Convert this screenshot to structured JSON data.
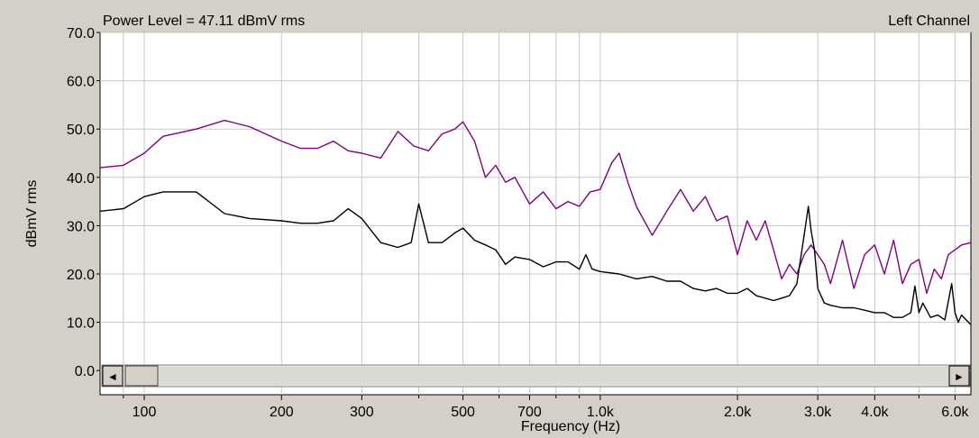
{
  "header": {
    "power_level": "Power Level = 47.11 dBmV rms",
    "channel": "Left Channel"
  },
  "scrollbar": {
    "left_arrow": "◄",
    "right_arrow": "►"
  },
  "colors": {
    "background": "#d4d0c8",
    "plot_bg": "#ffffff",
    "grid": "#c8c8c8",
    "series_upper": "#800080",
    "series_lower": "#000000"
  },
  "chart_data": {
    "type": "line",
    "xscale": "log",
    "xlabel": "Frequency (Hz)",
    "ylabel": "dBmV rms",
    "xlim": [
      80,
      6500
    ],
    "ylim": [
      -5,
      70
    ],
    "grid": true,
    "y_ticks": [
      0,
      10,
      20,
      30,
      40,
      50,
      60,
      70
    ],
    "y_tick_labels": [
      "0.0",
      "10.0",
      "20.0",
      "30.0",
      "40.0",
      "50.0",
      "60.0",
      "70.0"
    ],
    "x_ticks": [
      100,
      200,
      300,
      500,
      700,
      1000,
      2000,
      3000,
      4000,
      6000
    ],
    "x_tick_labels": [
      "100",
      "200",
      "300",
      "500",
      "700",
      "1.0k",
      "2.0k",
      "3.0k",
      "4.0k",
      "6.0k"
    ],
    "x_minor_grid": [
      90,
      400,
      600,
      800,
      900,
      5000
    ],
    "series": [
      {
        "color": "#800080",
        "x": [
          80,
          90,
          100,
          110,
          130,
          150,
          170,
          200,
          220,
          240,
          260,
          280,
          300,
          330,
          360,
          390,
          420,
          450,
          480,
          500,
          530,
          560,
          590,
          620,
          650,
          700,
          750,
          800,
          850,
          900,
          950,
          1000,
          1060,
          1100,
          1150,
          1200,
          1300,
          1400,
          1500,
          1600,
          1700,
          1800,
          1900,
          2000,
          2100,
          2200,
          2300,
          2400,
          2500,
          2600,
          2700,
          2800,
          2900,
          3000,
          3100,
          3200,
          3400,
          3600,
          3800,
          4000,
          4200,
          4400,
          4600,
          4800,
          5000,
          5200,
          5400,
          5600,
          5800,
          6000,
          6200,
          6500
        ],
        "y": [
          42,
          42.5,
          45,
          48.5,
          50,
          51.8,
          50.5,
          47.5,
          46,
          46,
          47.5,
          45.5,
          45,
          44,
          49.5,
          46.5,
          45.5,
          49,
          50,
          51.5,
          47.5,
          40,
          42.5,
          39,
          40,
          34.5,
          37,
          33.5,
          35,
          34,
          37,
          37.5,
          43,
          45,
          39,
          34,
          28,
          33,
          37.5,
          33,
          36,
          31,
          32,
          24,
          31,
          27,
          31,
          25,
          19,
          22,
          20,
          24,
          26,
          24,
          22,
          18,
          27,
          17,
          24,
          26,
          20,
          27,
          18,
          22,
          23,
          16,
          21,
          19,
          24,
          25,
          26,
          26.5
        ]
      },
      {
        "color": "#000000",
        "x": [
          80,
          90,
          100,
          110,
          130,
          150,
          170,
          200,
          220,
          240,
          260,
          280,
          300,
          330,
          360,
          385,
          400,
          420,
          450,
          480,
          500,
          530,
          560,
          590,
          620,
          650,
          700,
          750,
          800,
          850,
          900,
          930,
          960,
          1000,
          1100,
          1200,
          1300,
          1400,
          1500,
          1600,
          1700,
          1800,
          1900,
          2000,
          2100,
          2200,
          2300,
          2400,
          2500,
          2600,
          2700,
          2800,
          2860,
          2900,
          2950,
          3000,
          3100,
          3200,
          3400,
          3600,
          3800,
          4000,
          4200,
          4400,
          4600,
          4800,
          4900,
          5000,
          5100,
          5300,
          5500,
          5700,
          5900,
          6000,
          6100,
          6200,
          6500
        ],
        "y": [
          33,
          33.5,
          36,
          37,
          37,
          32.5,
          31.5,
          31,
          30.5,
          30.5,
          31,
          33.5,
          31.5,
          26.5,
          25.5,
          26.5,
          34.5,
          26.5,
          26.5,
          28.5,
          29.5,
          27,
          26,
          25,
          22,
          23.5,
          23,
          21.5,
          22.5,
          22.5,
          21,
          24,
          21,
          20.5,
          20,
          19,
          19.5,
          18.5,
          18.5,
          17,
          16.5,
          17,
          16,
          16,
          17,
          15.5,
          15,
          14.5,
          15,
          15.5,
          18,
          28,
          34,
          29,
          25,
          17,
          14,
          13.5,
          13,
          13,
          12.5,
          12,
          12,
          11,
          11,
          12,
          17.5,
          12,
          14,
          11,
          11.5,
          10.5,
          18,
          12,
          10,
          11.5,
          9.5
        ]
      }
    ]
  }
}
